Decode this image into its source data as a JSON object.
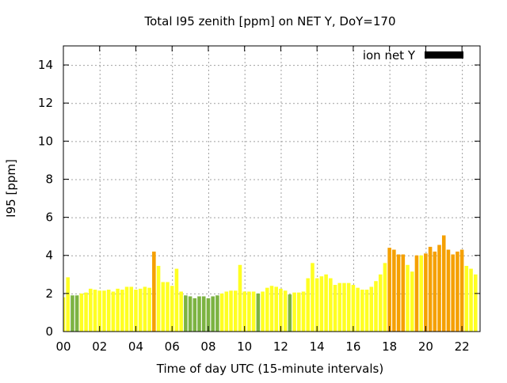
{
  "chart_data": {
    "type": "bar",
    "title": "Total I95 zenith [ppm] on NET Y, DoY=170",
    "xlabel": "Time of day UTC (15-minute intervals)",
    "ylabel": "I95 [ppm]",
    "xlim": [
      0,
      23
    ],
    "ylim": [
      0,
      15
    ],
    "xticks": [
      {
        "value": 0,
        "label": "00"
      },
      {
        "value": 2,
        "label": "02"
      },
      {
        "value": 4,
        "label": "04"
      },
      {
        "value": 6,
        "label": "06"
      },
      {
        "value": 8,
        "label": "08"
      },
      {
        "value": 10,
        "label": "10"
      },
      {
        "value": 12,
        "label": "12"
      },
      {
        "value": 14,
        "label": "14"
      },
      {
        "value": 16,
        "label": "16"
      },
      {
        "value": 18,
        "label": "18"
      },
      {
        "value": 20,
        "label": "20"
      },
      {
        "value": 22,
        "label": "22"
      }
    ],
    "yticks": [
      {
        "value": 0,
        "label": "0"
      },
      {
        "value": 2,
        "label": "2"
      },
      {
        "value": 4,
        "label": "4"
      },
      {
        "value": 6,
        "label": "6"
      },
      {
        "value": 8,
        "label": "8"
      },
      {
        "value": 10,
        "label": "10"
      },
      {
        "value": 12,
        "label": "12"
      },
      {
        "value": 14,
        "label": "14"
      }
    ],
    "grid": true,
    "legend": {
      "label": "ion net Y",
      "position": "top-right",
      "swatch_color": "#000000"
    },
    "colors": {
      "green": "#7cb342",
      "yellow": "#ffff22",
      "orange": "#f5a000",
      "grid": "#a0a0a0"
    },
    "bar_interval_hours": 0.25,
    "x": [
      0.0,
      0.25,
      0.5,
      0.75,
      1.0,
      1.25,
      1.5,
      1.75,
      2.0,
      2.25,
      2.5,
      2.75,
      3.0,
      3.25,
      3.5,
      3.75,
      4.0,
      4.25,
      4.5,
      4.75,
      5.0,
      5.25,
      5.5,
      5.75,
      6.0,
      6.25,
      6.5,
      6.75,
      7.0,
      7.25,
      7.5,
      7.75,
      8.0,
      8.25,
      8.5,
      8.75,
      9.0,
      9.25,
      9.5,
      9.75,
      10.0,
      10.25,
      10.5,
      10.75,
      11.0,
      11.25,
      11.5,
      11.75,
      12.0,
      12.25,
      12.5,
      12.75,
      13.0,
      13.25,
      13.5,
      13.75,
      14.0,
      14.25,
      14.5,
      14.75,
      15.0,
      15.25,
      15.5,
      15.75,
      16.0,
      16.25,
      16.5,
      16.75,
      17.0,
      17.25,
      17.5,
      17.75,
      18.0,
      18.25,
      18.5,
      18.75,
      19.0,
      19.25,
      19.5,
      19.75,
      20.0,
      20.25,
      20.5,
      20.75,
      21.0,
      21.25,
      21.5,
      21.75,
      22.0,
      22.25,
      22.5,
      22.75
    ],
    "values": [
      1.8,
      2.85,
      1.9,
      1.9,
      2.0,
      2.05,
      2.25,
      2.2,
      2.15,
      2.15,
      2.2,
      2.1,
      2.25,
      2.2,
      2.35,
      2.35,
      2.2,
      2.25,
      2.35,
      2.3,
      4.2,
      3.45,
      2.6,
      2.6,
      2.4,
      3.3,
      2.1,
      1.9,
      1.85,
      1.75,
      1.85,
      1.85,
      1.75,
      1.85,
      1.9,
      2.0,
      2.1,
      2.15,
      2.15,
      3.5,
      2.1,
      2.1,
      2.1,
      2.0,
      2.1,
      2.3,
      2.4,
      2.35,
      2.25,
      2.15,
      1.95,
      2.05,
      2.05,
      2.1,
      2.8,
      3.6,
      2.8,
      2.9,
      3.0,
      2.8,
      2.45,
      2.55,
      2.55,
      2.55,
      2.45,
      2.3,
      2.2,
      2.2,
      2.35,
      2.65,
      3.0,
      3.6,
      4.4,
      4.3,
      4.05,
      4.05,
      3.5,
      3.15,
      4.0,
      4.0,
      4.1,
      4.45,
      4.2,
      4.55,
      5.05,
      4.3,
      4.05,
      4.2,
      4.3,
      3.45,
      3.3,
      3.0
    ],
    "bar_colors": [
      "yellow",
      "yellow",
      "green",
      "green",
      "yellow",
      "yellow",
      "yellow",
      "yellow",
      "yellow",
      "yellow",
      "yellow",
      "yellow",
      "yellow",
      "yellow",
      "yellow",
      "yellow",
      "yellow",
      "yellow",
      "yellow",
      "yellow",
      "orange",
      "yellow",
      "yellow",
      "yellow",
      "yellow",
      "yellow",
      "yellow",
      "green",
      "green",
      "green",
      "green",
      "green",
      "green",
      "green",
      "green",
      "yellow",
      "yellow",
      "yellow",
      "yellow",
      "yellow",
      "yellow",
      "yellow",
      "yellow",
      "green",
      "yellow",
      "yellow",
      "yellow",
      "yellow",
      "yellow",
      "yellow",
      "green",
      "yellow",
      "yellow",
      "yellow",
      "yellow",
      "yellow",
      "yellow",
      "yellow",
      "yellow",
      "yellow",
      "yellow",
      "yellow",
      "yellow",
      "yellow",
      "yellow",
      "yellow",
      "yellow",
      "yellow",
      "yellow",
      "yellow",
      "yellow",
      "yellow",
      "orange",
      "orange",
      "orange",
      "orange",
      "yellow",
      "yellow",
      "orange",
      "yellow",
      "orange",
      "orange",
      "orange",
      "orange",
      "orange",
      "orange",
      "orange",
      "orange",
      "orange",
      "yellow",
      "yellow",
      "yellow"
    ]
  }
}
